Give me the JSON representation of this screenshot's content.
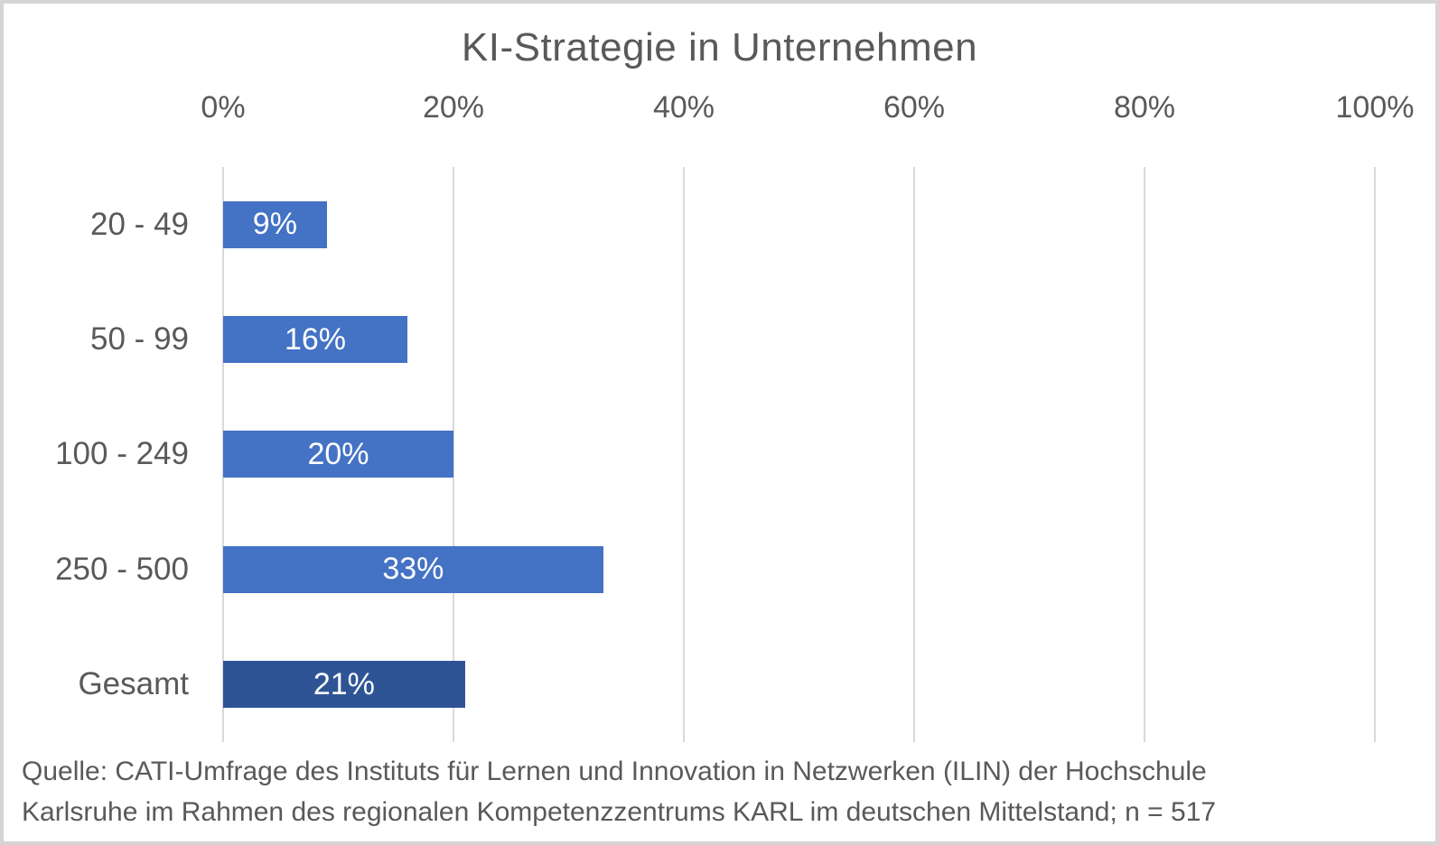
{
  "title": "KI-Strategie in Unternehmen",
  "colors": {
    "bar": "#4472C4",
    "bar_highlight": "#2F5496",
    "gridline": "#D9D9D9",
    "text": "#595959",
    "bar_label_text": "#FFFFFF",
    "frame_border": "#D5D5D5",
    "background": "#FFFFFF"
  },
  "chart_data": {
    "type": "bar",
    "orientation": "horizontal",
    "title": "KI-Strategie in Unternehmen",
    "categories": [
      "20 - 49",
      "50 - 99",
      "100 - 249",
      "250 - 500",
      "Gesamt"
    ],
    "values": [
      9,
      16,
      20,
      33,
      21
    ],
    "data_labels": [
      "9%",
      "16%",
      "20%",
      "33%",
      "21%"
    ],
    "highlight_category": "Gesamt",
    "x_axis": {
      "position": "top",
      "range": [
        0,
        100
      ],
      "tick_values": [
        0,
        20,
        40,
        60,
        80,
        100
      ],
      "tick_labels": [
        "0%",
        "20%",
        "40%",
        "60%",
        "80%",
        "100%"
      ]
    },
    "grid": "vertical",
    "legend": "none",
    "xlabel": "",
    "ylabel": ""
  },
  "source_note": {
    "line1": "Quelle: CATI-Umfrage des Instituts für Lernen und Innovation in Netzwerken (ILIN) der Hochschule",
    "line2": "Karlsruhe im Rahmen des regionalen Kompetenzzentrums KARL im deutschen Mittelstand; n = 517"
  }
}
